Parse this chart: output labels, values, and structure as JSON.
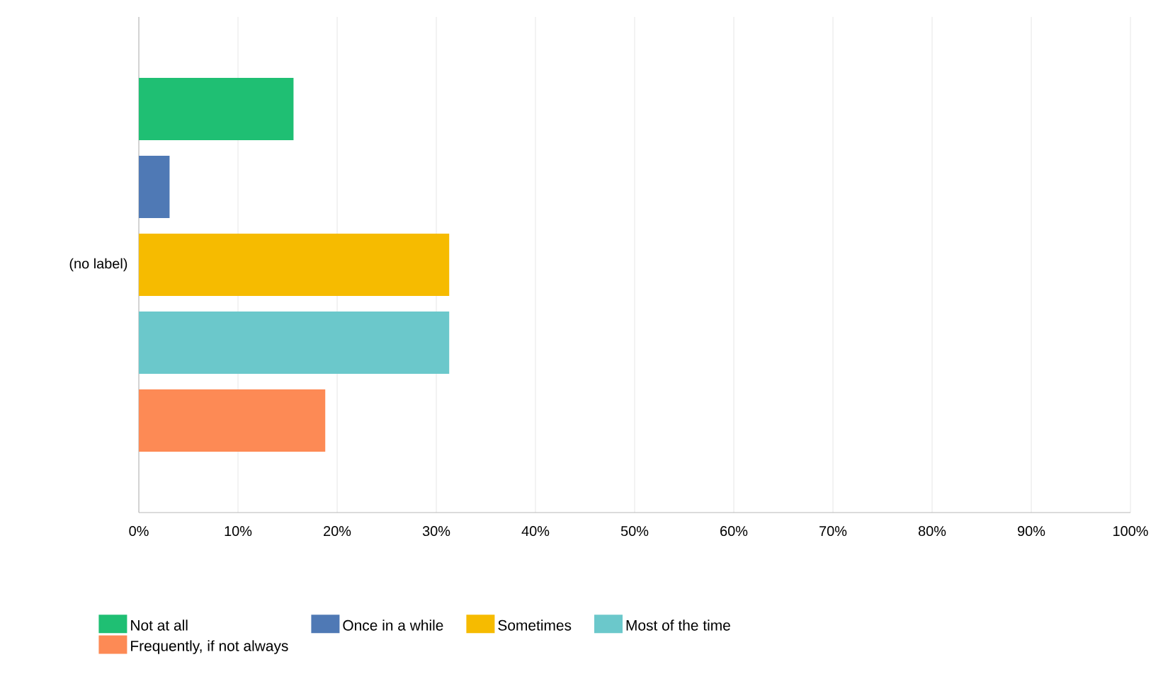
{
  "chart_data": {
    "type": "bar",
    "orientation": "horizontal",
    "categories": [
      "(no label)"
    ],
    "series": [
      {
        "name": "Not at all",
        "color": "#1fbf73",
        "values": [
          15.6
        ]
      },
      {
        "name": "Once in a while",
        "color": "#4f79b5",
        "values": [
          3.1
        ]
      },
      {
        "name": "Sometimes",
        "color": "#f6bb00",
        "values": [
          31.3
        ]
      },
      {
        "name": "Most of the time",
        "color": "#6bc8cb",
        "values": [
          31.3
        ]
      },
      {
        "name": "Frequently, if not always",
        "color": "#fd8a55",
        "values": [
          18.8
        ]
      }
    ],
    "xlim": [
      0,
      100
    ],
    "xticks": [
      {
        "value": 0,
        "label": "0%"
      },
      {
        "value": 10,
        "label": "10%"
      },
      {
        "value": 20,
        "label": "20%"
      },
      {
        "value": 30,
        "label": "30%"
      },
      {
        "value": 40,
        "label": "40%"
      },
      {
        "value": 50,
        "label": "50%"
      },
      {
        "value": 60,
        "label": "60%"
      },
      {
        "value": 70,
        "label": "70%"
      },
      {
        "value": 80,
        "label": "80%"
      },
      {
        "value": 90,
        "label": "90%"
      },
      {
        "value": 100,
        "label": "100%"
      }
    ],
    "grid": "x",
    "legend": "bottom"
  }
}
